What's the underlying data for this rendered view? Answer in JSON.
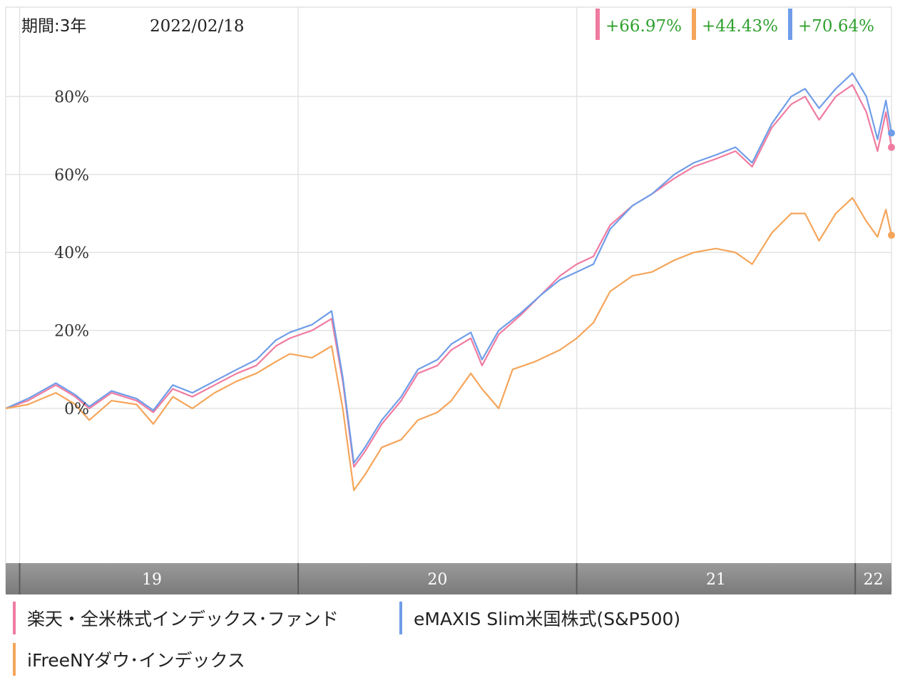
{
  "header": {
    "period_label": "期間:3年",
    "date_label": "2022/02/18"
  },
  "colors": {
    "pink": "#f07ba0",
    "orange": "#f5a55a",
    "blue": "#6f9de8",
    "gain_text": "#2ea02e",
    "axis_band": "#8c8c8c"
  },
  "returns": [
    {
      "color": "pink",
      "text": "+66.97%"
    },
    {
      "color": "orange",
      "text": "+44.43%"
    },
    {
      "color": "blue",
      "text": "+70.64%"
    }
  ],
  "legend": [
    {
      "color": "pink",
      "label": "楽天・全米株式インデックス･ファンド"
    },
    {
      "color": "blue",
      "label": "eMAXIS Slim米国株式(S&P500)"
    },
    {
      "color": "orange",
      "label": "iFreeNYダウ･インデックス"
    }
  ],
  "chart_data": {
    "type": "line",
    "x_unit": "year",
    "xlim": [
      2018.95,
      2022.13
    ],
    "ylim": [
      -40,
      90
    ],
    "y_ticks": [
      0,
      20,
      40,
      60,
      80
    ],
    "y_tick_labels": [
      "0%",
      "20%",
      "40%",
      "60%",
      "80%"
    ],
    "x_tick_labels": [
      {
        "x": 2019,
        "label": "19"
      },
      {
        "x": 2020,
        "label": "20"
      },
      {
        "x": 2021,
        "label": "21"
      },
      {
        "x": 2022,
        "label": "22"
      }
    ],
    "grid": true,
    "series": [
      {
        "name": "楽天・全米株式インデックス･ファンド",
        "color": "pink",
        "points": [
          [
            2018.95,
            0
          ],
          [
            2019.03,
            2
          ],
          [
            2019.13,
            6
          ],
          [
            2019.2,
            3
          ],
          [
            2019.25,
            0
          ],
          [
            2019.33,
            4
          ],
          [
            2019.42,
            2
          ],
          [
            2019.48,
            -1
          ],
          [
            2019.55,
            5
          ],
          [
            2019.62,
            3
          ],
          [
            2019.7,
            6
          ],
          [
            2019.78,
            9
          ],
          [
            2019.85,
            11
          ],
          [
            2019.92,
            16
          ],
          [
            2019.97,
            18
          ],
          [
            2020.05,
            20
          ],
          [
            2020.12,
            23
          ],
          [
            2020.16,
            7
          ],
          [
            2020.2,
            -15
          ],
          [
            2020.24,
            -11
          ],
          [
            2020.3,
            -4
          ],
          [
            2020.37,
            2
          ],
          [
            2020.43,
            9
          ],
          [
            2020.5,
            11
          ],
          [
            2020.55,
            15
          ],
          [
            2020.62,
            18
          ],
          [
            2020.66,
            11
          ],
          [
            2020.72,
            19
          ],
          [
            2020.8,
            24
          ],
          [
            2020.87,
            29
          ],
          [
            2020.94,
            34
          ],
          [
            2021.0,
            37
          ],
          [
            2021.06,
            39
          ],
          [
            2021.12,
            47
          ],
          [
            2021.2,
            52
          ],
          [
            2021.27,
            55
          ],
          [
            2021.35,
            59
          ],
          [
            2021.42,
            62
          ],
          [
            2021.5,
            64
          ],
          [
            2021.57,
            66
          ],
          [
            2021.63,
            62
          ],
          [
            2021.7,
            72
          ],
          [
            2021.77,
            78
          ],
          [
            2021.82,
            80
          ],
          [
            2021.87,
            74
          ],
          [
            2021.93,
            80
          ],
          [
            2021.99,
            83
          ],
          [
            2022.04,
            76
          ],
          [
            2022.08,
            66
          ],
          [
            2022.11,
            76
          ],
          [
            2022.13,
            66.97
          ]
        ]
      },
      {
        "name": "eMAXIS Slim米国株式(S&P500)",
        "color": "blue",
        "points": [
          [
            2018.95,
            0
          ],
          [
            2019.03,
            2.5
          ],
          [
            2019.13,
            6.5
          ],
          [
            2019.2,
            3.5
          ],
          [
            2019.25,
            0.5
          ],
          [
            2019.33,
            4.5
          ],
          [
            2019.42,
            2.5
          ],
          [
            2019.48,
            -0.5
          ],
          [
            2019.55,
            6
          ],
          [
            2019.62,
            4
          ],
          [
            2019.7,
            7
          ],
          [
            2019.78,
            10
          ],
          [
            2019.85,
            12.5
          ],
          [
            2019.92,
            17.5
          ],
          [
            2019.97,
            19.5
          ],
          [
            2020.05,
            21.5
          ],
          [
            2020.12,
            25
          ],
          [
            2020.16,
            8
          ],
          [
            2020.2,
            -14
          ],
          [
            2020.24,
            -10
          ],
          [
            2020.3,
            -3
          ],
          [
            2020.37,
            3
          ],
          [
            2020.43,
            10
          ],
          [
            2020.5,
            12.5
          ],
          [
            2020.55,
            16.5
          ],
          [
            2020.62,
            19.5
          ],
          [
            2020.66,
            12.5
          ],
          [
            2020.72,
            20
          ],
          [
            2020.8,
            24.5
          ],
          [
            2020.87,
            29
          ],
          [
            2020.94,
            33
          ],
          [
            2021.0,
            35
          ],
          [
            2021.06,
            37
          ],
          [
            2021.12,
            46
          ],
          [
            2021.2,
            52
          ],
          [
            2021.27,
            55
          ],
          [
            2021.35,
            60
          ],
          [
            2021.42,
            63
          ],
          [
            2021.5,
            65
          ],
          [
            2021.57,
            67
          ],
          [
            2021.63,
            63
          ],
          [
            2021.7,
            73
          ],
          [
            2021.77,
            80
          ],
          [
            2021.82,
            82
          ],
          [
            2021.87,
            77
          ],
          [
            2021.93,
            82
          ],
          [
            2021.99,
            86
          ],
          [
            2022.04,
            80
          ],
          [
            2022.08,
            69
          ],
          [
            2022.11,
            79
          ],
          [
            2022.13,
            70.64
          ]
        ]
      },
      {
        "name": "iFreeNYダウ･インデックス",
        "color": "orange",
        "points": [
          [
            2018.95,
            0
          ],
          [
            2019.03,
            1
          ],
          [
            2019.13,
            4
          ],
          [
            2019.2,
            1
          ],
          [
            2019.25,
            -3
          ],
          [
            2019.33,
            2
          ],
          [
            2019.42,
            1
          ],
          [
            2019.48,
            -4
          ],
          [
            2019.55,
            3
          ],
          [
            2019.62,
            0
          ],
          [
            2019.7,
            4
          ],
          [
            2019.78,
            7
          ],
          [
            2019.85,
            9
          ],
          [
            2019.92,
            12
          ],
          [
            2019.97,
            14
          ],
          [
            2020.05,
            13
          ],
          [
            2020.12,
            16
          ],
          [
            2020.16,
            0
          ],
          [
            2020.2,
            -21
          ],
          [
            2020.24,
            -17
          ],
          [
            2020.3,
            -10
          ],
          [
            2020.37,
            -8
          ],
          [
            2020.43,
            -3
          ],
          [
            2020.5,
            -1
          ],
          [
            2020.55,
            2
          ],
          [
            2020.62,
            9
          ],
          [
            2020.66,
            5
          ],
          [
            2020.72,
            0
          ],
          [
            2020.77,
            10
          ],
          [
            2020.85,
            12
          ],
          [
            2020.94,
            15
          ],
          [
            2021.0,
            18
          ],
          [
            2021.06,
            22
          ],
          [
            2021.12,
            30
          ],
          [
            2021.2,
            34
          ],
          [
            2021.27,
            35
          ],
          [
            2021.35,
            38
          ],
          [
            2021.42,
            40
          ],
          [
            2021.5,
            41
          ],
          [
            2021.57,
            40
          ],
          [
            2021.63,
            37
          ],
          [
            2021.7,
            45
          ],
          [
            2021.77,
            50
          ],
          [
            2021.82,
            50
          ],
          [
            2021.87,
            43
          ],
          [
            2021.93,
            50
          ],
          [
            2021.99,
            54
          ],
          [
            2022.04,
            48
          ],
          [
            2022.08,
            44
          ],
          [
            2022.11,
            51
          ],
          [
            2022.13,
            44.43
          ]
        ]
      }
    ]
  }
}
